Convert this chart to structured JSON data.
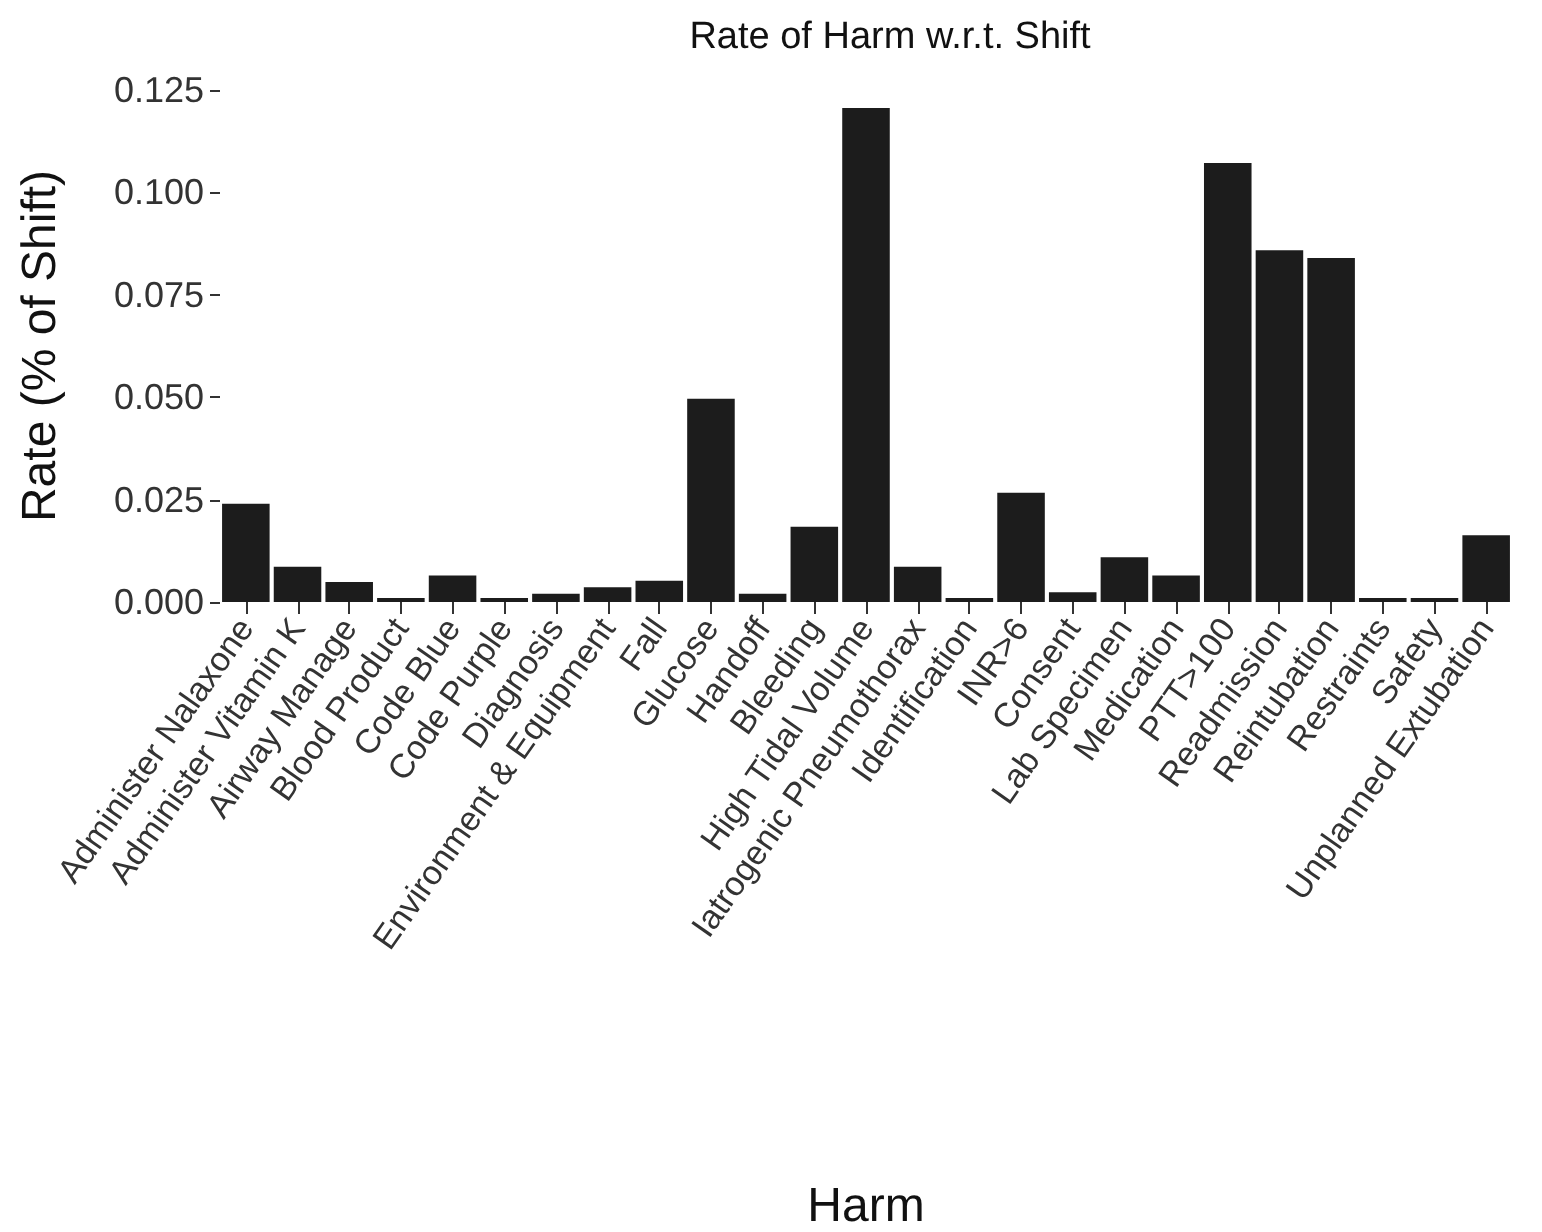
{
  "chart_data": {
    "type": "bar",
    "title": "Rate of Harm w.r.t. Shift",
    "xlabel": "Harm",
    "ylabel": "Rate (% of Shift)",
    "categories": [
      "Administer Nalaxone",
      "Administer Vitamin K",
      "Airway Manage",
      "Blood Product",
      "Code Blue",
      "Code Purple",
      "Diagnosis",
      "Environment & Equipment",
      "Fall",
      "Glucose",
      "Handoff",
      "Bleeding",
      "High Tidal Volume",
      "Iatrogenic Pneumothorax",
      "Identification",
      "INR>6",
      "Consent",
      "Lab Specimen",
      "Medication",
      "PTT>100",
      "Readmission",
      "Reintubation",
      "Restraints",
      "Safety",
      "Unplanned Extubation"
    ],
    "values": [
      0.024,
      0.0086,
      0.0049,
      0.001,
      0.0065,
      0.001,
      0.002,
      0.0036,
      0.0052,
      0.0496,
      0.002,
      0.0184,
      0.1206,
      0.0086,
      0.001,
      0.0267,
      0.0024,
      0.0109,
      0.0065,
      0.1072,
      0.0859,
      0.084,
      0.001,
      0.001,
      0.0163
    ],
    "color": "#1c1c1c",
    "ylim": [
      0,
      0.125
    ],
    "yticks": [
      {
        "value": 0,
        "label": "0.000"
      },
      {
        "value": 0.025,
        "label": "0.025"
      },
      {
        "value": 0.05,
        "label": "0.050"
      },
      {
        "value": 0.075,
        "label": "0.075"
      },
      {
        "value": 0.1,
        "label": "0.100"
      },
      {
        "value": 0.125,
        "label": "0.125"
      }
    ],
    "grid": false
  }
}
